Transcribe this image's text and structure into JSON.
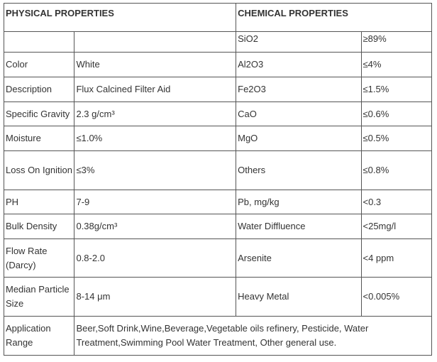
{
  "physical": {
    "heading": "PHYSICAL PROPERTIES",
    "rows": [
      {
        "label": "Color",
        "value": "White"
      },
      {
        "label": "Description",
        "value": "Flux Calcined Filter Aid"
      },
      {
        "label": "Specific Gravity",
        "value": "2.3 g/cm³"
      },
      {
        "label": "Moisture",
        "value": "≤1.0%"
      },
      {
        "label": "Loss On Ignition",
        "value": "≤3%"
      },
      {
        "label": "PH",
        "value": "7-9"
      },
      {
        "label": "Bulk Density",
        "value": "0.38g/cm³"
      },
      {
        "label": "Flow Rate (Darcy)",
        "value": "0.8-2.0"
      },
      {
        "label": "Median Particle Size",
        "value": "8-14 μm"
      }
    ]
  },
  "chemical": {
    "heading": "CHEMICAL PROPERTIES",
    "rows": [
      {
        "label": "SiO2",
        "value": "≥89%"
      },
      {
        "label": "Al2O3",
        "value": "≤4%"
      },
      {
        "label": "Fe2O3",
        "value": "≤1.5%"
      },
      {
        "label": "CaO",
        "value": "≤0.6%"
      },
      {
        "label": "MgO",
        "value": "≤0.5%"
      },
      {
        "label": "Others",
        "value": "≤0.8%"
      },
      {
        "label": "Pb, mg/kg",
        "value": "<0.3"
      },
      {
        "label": "Water Diffluence",
        "value": "<25mg/l"
      },
      {
        "label": "Arsenite",
        "value": "<4 ppm"
      },
      {
        "label": "Heavy Metal",
        "value": "<0.005%"
      }
    ]
  },
  "application": {
    "label": "Application Range",
    "value": "Beer,Soft Drink,Wine,Beverage,Vegetable oils refinery, Pesticide, Water Treatment,Swimming Pool Water Treatment, Other general use."
  }
}
